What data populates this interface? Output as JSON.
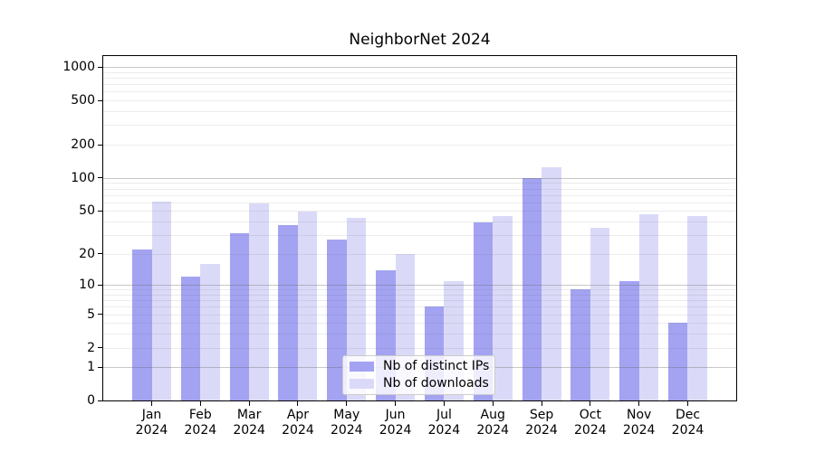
{
  "chart_data": {
    "type": "bar",
    "title": "NeighborNet 2024",
    "categories": [
      "Jan",
      "Feb",
      "Mar",
      "Apr",
      "May",
      "Jun",
      "Jul",
      "Aug",
      "Sep",
      "Oct",
      "Nov",
      "Dec"
    ],
    "year_label": "2024",
    "series": [
      {
        "name": "Nb of distinct IPs",
        "color": "#a3a3f2",
        "values": [
          22,
          12,
          31,
          37,
          27,
          14,
          6,
          39,
          100,
          9,
          11,
          4
        ]
      },
      {
        "name": "Nb of downloads",
        "color": "#dadaf8",
        "values": [
          61,
          16,
          58,
          49,
          43,
          20,
          11,
          45,
          125,
          35,
          47,
          45
        ]
      }
    ],
    "yscale": "log1p",
    "ylim": [
      0,
      1270
    ],
    "yticks": [
      0,
      1,
      2,
      5,
      10,
      20,
      50,
      100,
      200,
      500,
      1000
    ],
    "grid": {
      "major_lines": [
        1,
        10,
        100,
        1000
      ],
      "minor_lines": [
        2,
        3,
        4,
        5,
        6,
        7,
        8,
        9,
        20,
        30,
        40,
        50,
        60,
        70,
        80,
        90,
        200,
        300,
        400,
        500,
        600,
        700,
        800,
        900
      ]
    },
    "legend_position": "lower center",
    "xlabel": "",
    "ylabel": ""
  }
}
